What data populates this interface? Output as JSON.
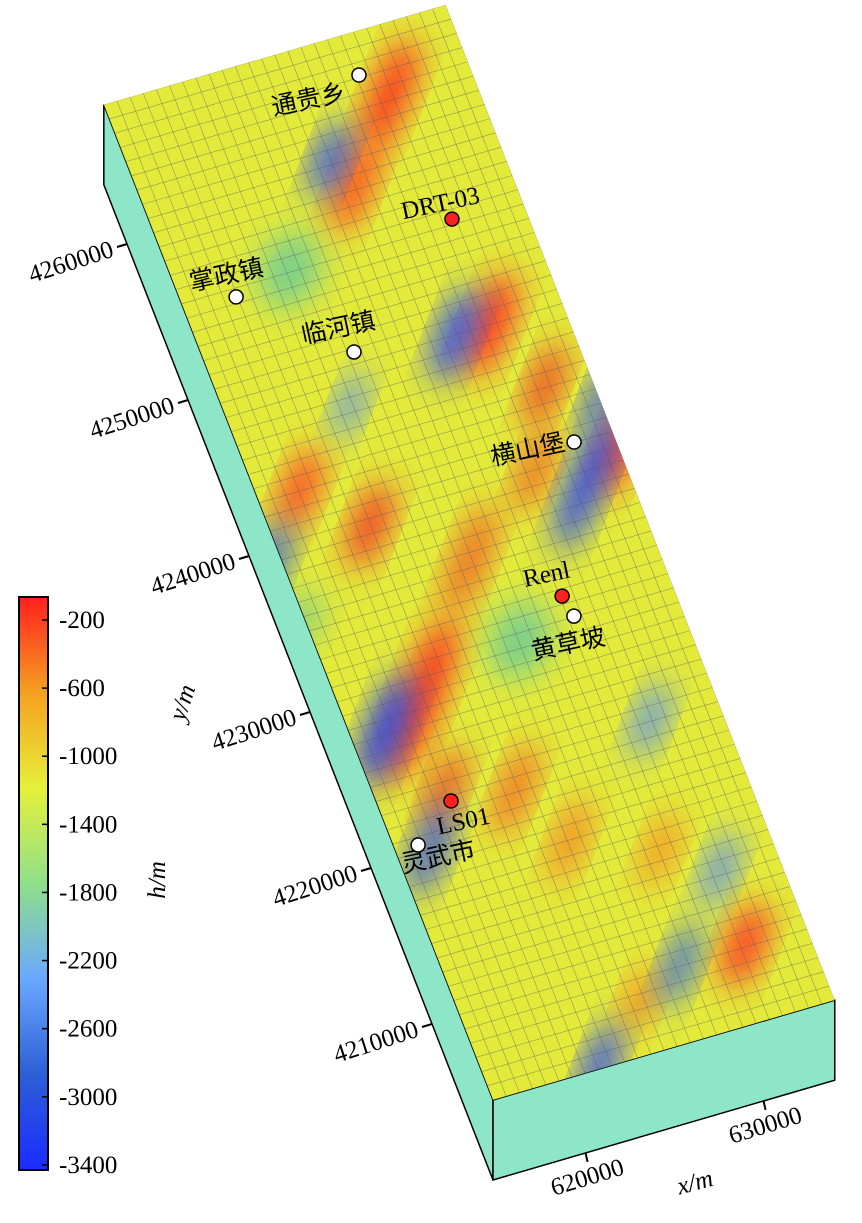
{
  "chart_data": {
    "type": "surface",
    "xlabel": "x/m",
    "ylabel": "y/m",
    "colorbar_label": "h/m",
    "xlim": [
      614800,
      634000
    ],
    "ylim": [
      4200000,
      4263800
    ],
    "xticks": [
      620000,
      630000
    ],
    "yticks": [
      4210000,
      4220000,
      4230000,
      4240000,
      4250000,
      4260000
    ],
    "clim": [
      -3430,
      -65
    ],
    "cticks": [
      -200,
      -600,
      -1000,
      -1400,
      -1800,
      -2200,
      -2600,
      -3000,
      -3400
    ],
    "colormap": [
      "#1a2cff",
      "#2d5fd6",
      "#6aa8ff",
      "#8fe08a",
      "#e6f03a",
      "#f5a020",
      "#ff1f1f"
    ],
    "points": [
      {
        "label": "通贵乡",
        "x": 628250,
        "y": 4261220,
        "color": "#ffffff"
      },
      {
        "label": "DRT-03",
        "x": 630100,
        "y": 4251370,
        "color": "#ff2020"
      },
      {
        "label": "掌政镇",
        "x": 617680,
        "y": 4250520,
        "color": "#ffffff"
      },
      {
        "label": "临河镇",
        "x": 622540,
        "y": 4245370,
        "color": "#ffffff"
      },
      {
        "label": "横山堡",
        "x": 631860,
        "y": 4236490,
        "color": "#ffffff"
      },
      {
        "label": "Renl",
        "x": 628220,
        "y": 4227830,
        "color": "#ff2020"
      },
      {
        "label": "黄草坡",
        "x": 628420,
        "y": 4226480,
        "color": "#ffffff"
      },
      {
        "label": "LS01",
        "x": 618580,
        "y": 4217910,
        "color": "#ff2020"
      },
      {
        "label": "灵武市",
        "x": 616050,
        "y": 4215930,
        "color": "#ffffff"
      }
    ]
  }
}
